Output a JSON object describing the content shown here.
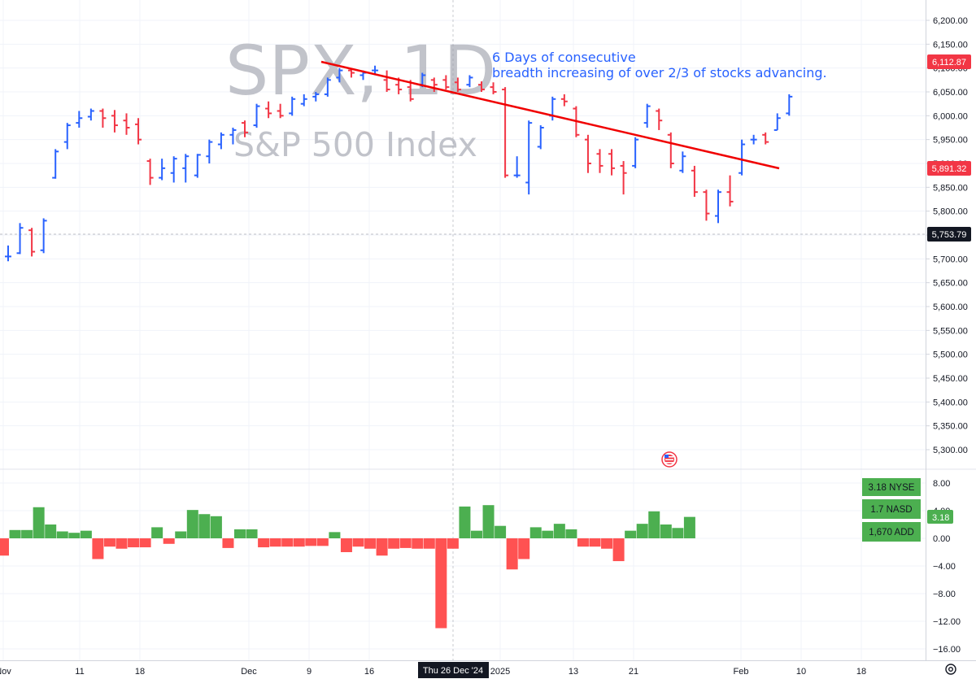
{
  "watermark": {
    "symbol": "SPX, 1D",
    "name": "S&P 500 Index"
  },
  "annotation": {
    "line1": "6 Days of consecutive",
    "line2": "breadth increasing of over 2/3 of stocks advancing."
  },
  "crosshair_label": "Thu 26 Dec '24",
  "price_badges": [
    {
      "value": "6,112.87",
      "color": "#f23645"
    },
    {
      "value": "5,891.32",
      "color": "#f23645"
    },
    {
      "value": "5,753.79",
      "color": "#131722"
    }
  ],
  "indicator_badge": "3.18",
  "breadth_legend": [
    {
      "label": "3.18 NYSE",
      "color": "#4caf50"
    },
    {
      "label": "1.7 NASD",
      "color": "#4caf50"
    },
    {
      "label": "1,670 ADD",
      "color": "#4caf50"
    }
  ],
  "icons": {
    "settings": "gear-icon",
    "flag": "us-flag-icon"
  },
  "colors": {
    "up": "#2962ff",
    "down": "#f23645",
    "pos": "#4caf50",
    "neg": "#ff5252",
    "trendline": "#f00000"
  },
  "chart_data": [
    {
      "type": "ohlc",
      "title": "SPX, 1D",
      "subtitle": "S&P 500 Index",
      "y_ticks": [
        "6,200.00",
        "6,150.00",
        "6,100.00",
        "6,050.00",
        "6,000.00",
        "5,950.00",
        "5,900.00",
        "5,850.00",
        "5,800.00",
        "5,750.00",
        "5,700.00",
        "5,650.00",
        "5,600.00",
        "5,550.00",
        "5,500.00",
        "5,450.00",
        "5,400.00",
        "5,350.00",
        "5,300.00"
      ],
      "ylim": [
        5280,
        6230
      ],
      "x_ticks": [
        "Nov",
        "11",
        "18",
        "Dec",
        "9",
        "16",
        "2025",
        "13",
        "21",
        "Feb",
        "10",
        "18"
      ],
      "bars": [
        {
          "o": 5705,
          "h": 5728,
          "l": 5695,
          "c": 5705
        },
        {
          "o": 5712,
          "h": 5775,
          "l": 5710,
          "c": 5765
        },
        {
          "o": 5760,
          "h": 5765,
          "l": 5705,
          "c": 5715
        },
        {
          "o": 5718,
          "h": 5785,
          "l": 5712,
          "c": 5780
        },
        {
          "o": 5870,
          "h": 5930,
          "l": 5868,
          "c": 5925
        },
        {
          "o": 5945,
          "h": 5985,
          "l": 5930,
          "c": 5980
        },
        {
          "o": 5985,
          "h": 6010,
          "l": 5975,
          "c": 5995
        },
        {
          "o": 5998,
          "h": 6015,
          "l": 5990,
          "c": 6010
        },
        {
          "o": 6010,
          "h": 6015,
          "l": 5975,
          "c": 5995
        },
        {
          "o": 6000,
          "h": 6012,
          "l": 5965,
          "c": 5980
        },
        {
          "o": 5990,
          "h": 6005,
          "l": 5960,
          "c": 5975
        },
        {
          "o": 5982,
          "h": 5995,
          "l": 5940,
          "c": 5950
        },
        {
          "o": 5905,
          "h": 5910,
          "l": 5855,
          "c": 5870
        },
        {
          "o": 5870,
          "h": 5910,
          "l": 5865,
          "c": 5890
        },
        {
          "o": 5880,
          "h": 5915,
          "l": 5860,
          "c": 5910
        },
        {
          "o": 5890,
          "h": 5920,
          "l": 5860,
          "c": 5915
        },
        {
          "o": 5875,
          "h": 5920,
          "l": 5870,
          "c": 5918
        },
        {
          "o": 5915,
          "h": 5950,
          "l": 5900,
          "c": 5945
        },
        {
          "o": 5940,
          "h": 5965,
          "l": 5930,
          "c": 5960
        },
        {
          "o": 5960,
          "h": 5975,
          "l": 5940,
          "c": 5970
        },
        {
          "o": 5985,
          "h": 5990,
          "l": 5955,
          "c": 5965
        },
        {
          "o": 5980,
          "h": 6025,
          "l": 5975,
          "c": 6020
        },
        {
          "o": 6015,
          "h": 6030,
          "l": 5995,
          "c": 6005
        },
        {
          "o": 6010,
          "h": 6025,
          "l": 5995,
          "c": 6000
        },
        {
          "o": 6005,
          "h": 6040,
          "l": 6000,
          "c": 6035
        },
        {
          "o": 6025,
          "h": 6045,
          "l": 6020,
          "c": 6035
        },
        {
          "o": 6040,
          "h": 6050,
          "l": 6030,
          "c": 6045
        },
        {
          "o": 6045,
          "h": 6080,
          "l": 6040,
          "c": 6075
        },
        {
          "o": 6080,
          "h": 6100,
          "l": 6070,
          "c": 6095
        },
        {
          "o": 6095,
          "h": 6100,
          "l": 6080,
          "c": 6090
        },
        {
          "o": 6085,
          "h": 6095,
          "l": 6075,
          "c": 6090
        },
        {
          "o": 6095,
          "h": 6105,
          "l": 6085,
          "c": 6095
        },
        {
          "o": 6075,
          "h": 6095,
          "l": 6050,
          "c": 6055
        },
        {
          "o": 6065,
          "h": 6080,
          "l": 6045,
          "c": 6055
        },
        {
          "o": 6060,
          "h": 6075,
          "l": 6030,
          "c": 6035
        },
        {
          "o": 6065,
          "h": 6090,
          "l": 6060,
          "c": 6085
        },
        {
          "o": 6075,
          "h": 6080,
          "l": 6050,
          "c": 6065
        },
        {
          "o": 6075,
          "h": 6085,
          "l": 6055,
          "c": 6060
        },
        {
          "o": 6070,
          "h": 6080,
          "l": 6050,
          "c": 6055
        },
        {
          "o": 6065,
          "h": 6085,
          "l": 6060,
          "c": 6080
        },
        {
          "o": 6065,
          "h": 6072,
          "l": 6050,
          "c": 6055
        },
        {
          "o": 6060,
          "h": 6070,
          "l": 6045,
          "c": 6050
        },
        {
          "o": 6055,
          "h": 6060,
          "l": 5870,
          "c": 5875
        },
        {
          "o": 5875,
          "h": 5915,
          "l": 5870,
          "c": 5875
        },
        {
          "o": 5860,
          "h": 5990,
          "l": 5835,
          "c": 5985
        },
        {
          "o": 5935,
          "h": 5980,
          "l": 5930,
          "c": 5975
        },
        {
          "o": 6000,
          "h": 6040,
          "l": 5990,
          "c": 6035
        },
        {
          "o": 6035,
          "h": 6045,
          "l": 6020,
          "c": 6030
        },
        {
          "o": 6015,
          "h": 6020,
          "l": 5955,
          "c": 5960
        },
        {
          "o": 5950,
          "h": 5960,
          "l": 5880,
          "c": 5900
        },
        {
          "o": 5920,
          "h": 5930,
          "l": 5880,
          "c": 5895
        },
        {
          "o": 5920,
          "h": 5930,
          "l": 5875,
          "c": 5890
        },
        {
          "o": 5895,
          "h": 5905,
          "l": 5835,
          "c": 5880
        },
        {
          "o": 5895,
          "h": 5955,
          "l": 5890,
          "c": 5950
        },
        {
          "o": 5985,
          "h": 6025,
          "l": 5975,
          "c": 6020
        },
        {
          "o": 6010,
          "h": 6015,
          "l": 5970,
          "c": 5990
        },
        {
          "o": 5960,
          "h": 5965,
          "l": 5890,
          "c": 5900
        },
        {
          "o": 5885,
          "h": 5925,
          "l": 5880,
          "c": 5915
        },
        {
          "o": 5885,
          "h": 5895,
          "l": 5830,
          "c": 5840
        },
        {
          "o": 5840,
          "h": 5845,
          "l": 5780,
          "c": 5795
        },
        {
          "o": 5790,
          "h": 5845,
          "l": 5775,
          "c": 5840
        },
        {
          "o": 5840,
          "h": 5875,
          "l": 5810,
          "c": 5820
        },
        {
          "o": 5880,
          "h": 5950,
          "l": 5875,
          "c": 5940
        },
        {
          "o": 5950,
          "h": 5960,
          "l": 5940,
          "c": 5950
        },
        {
          "o": 5960,
          "h": 5965,
          "l": 5940,
          "c": 5945
        },
        {
          "o": 5970,
          "h": 6005,
          "l": 5970,
          "c": 5995
        },
        {
          "o": 6005,
          "h": 6045,
          "l": 6000,
          "c": 6040
        }
      ],
      "trendline": {
        "from": {
          "bar": 26,
          "value": 6113
        },
        "to": {
          "bar": 65,
          "value": 5891
        },
        "extend_to_bar": 65
      },
      "reference_line": 5753.79
    },
    {
      "type": "bar",
      "title": "",
      "y_ticks": [
        "8.00",
        "4.00",
        "0.00",
        "−4.00",
        "−8.00",
        "−12.00",
        "−16.00"
      ],
      "ylim": [
        -17,
        9
      ],
      "values": [
        -2.5,
        1.2,
        1.2,
        4.5,
        2.0,
        1.0,
        0.8,
        1.1,
        -3.0,
        -1.2,
        -1.5,
        -1.3,
        -1.3,
        1.6,
        -0.8,
        1.0,
        4.1,
        3.5,
        3.2,
        -1.4,
        1.3,
        1.3,
        -1.3,
        -1.2,
        -1.2,
        -1.2,
        -1.1,
        -1.1,
        0.9,
        -2.0,
        -1.2,
        -1.5,
        -2.5,
        -1.5,
        -1.4,
        -1.5,
        -1.5,
        -13.0,
        -1.5,
        4.6,
        1.1,
        4.8,
        1.8,
        -4.5,
        -3.0,
        1.6,
        1.1,
        2.1,
        1.3,
        -1.2,
        -1.2,
        -1.5,
        -3.3,
        1.1,
        2.1,
        3.9,
        2.0,
        1.5,
        3.1
      ]
    }
  ]
}
